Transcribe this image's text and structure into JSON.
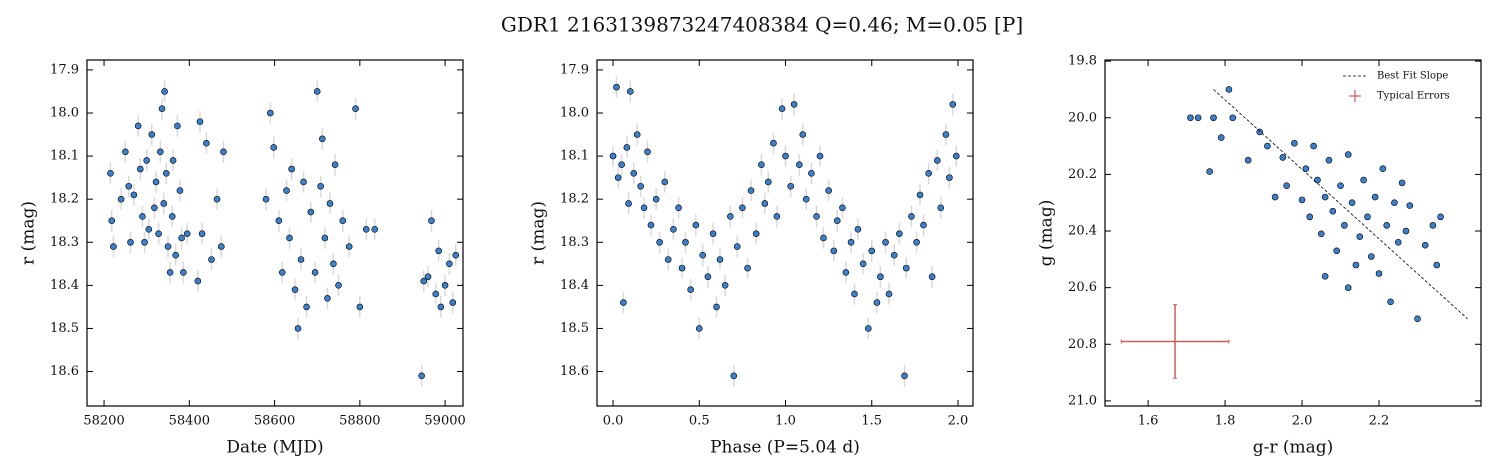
{
  "title": "GDR1 2163139873247408384  Q=0.46; M=0.05 [P]",
  "chart_data": [
    {
      "type": "scatter",
      "xlabel": "Date (MJD)",
      "ylabel": "r (mag)",
      "color": "#3a80cc",
      "error_color": "#d9d9d9",
      "yerr": 0.025,
      "xlim": [
        58160,
        59042
      ],
      "ylim": [
        18.68,
        17.877
      ],
      "xticks": [
        58200,
        58400,
        58600,
        58800,
        59000
      ],
      "yticks": [
        17.9,
        {
          "value": 18.0,
          "label": "18.0"
        },
        18.1,
        18.2,
        18.3,
        18.4,
        18.5,
        18.6
      ],
      "x": [
        58215,
        58218,
        58222,
        58240,
        58250,
        58258,
        58262,
        58270,
        58280,
        58285,
        58290,
        58295,
        58300,
        58305,
        58312,
        58318,
        58322,
        58328,
        58332,
        58336,
        58340,
        58342,
        58346,
        58350,
        58355,
        58360,
        58362,
        58368,
        58372,
        58378,
        58382,
        58386,
        58395,
        58420,
        58425,
        58430,
        58440,
        58452,
        58465,
        58475,
        58480,
        58580,
        58590,
        58598,
        58610,
        58618,
        58628,
        58635,
        58640,
        58648,
        58655,
        58662,
        58668,
        58675,
        58685,
        58695,
        58700,
        58708,
        58712,
        58718,
        58724,
        58730,
        58738,
        58742,
        58750,
        58760,
        58775,
        58790,
        58800,
        58815,
        58835,
        58945,
        58950,
        58960,
        58968,
        58978,
        58985,
        58990,
        59000,
        59010,
        59018,
        59025
      ],
      "y": [
        18.14,
        18.25,
        18.31,
        18.2,
        18.09,
        18.17,
        18.3,
        18.19,
        18.03,
        18.13,
        18.24,
        18.3,
        18.11,
        18.27,
        18.05,
        18.22,
        18.16,
        18.28,
        18.09,
        17.99,
        18.21,
        17.95,
        18.14,
        18.31,
        18.37,
        18.24,
        18.11,
        18.33,
        18.03,
        18.18,
        18.29,
        18.37,
        18.28,
        18.39,
        18.02,
        18.28,
        18.07,
        18.34,
        18.2,
        18.31,
        18.09,
        18.2,
        18.0,
        18.08,
        18.25,
        18.37,
        18.18,
        18.29,
        18.13,
        18.41,
        18.5,
        18.34,
        18.16,
        18.45,
        18.23,
        18.37,
        17.95,
        18.17,
        18.06,
        18.29,
        18.43,
        18.21,
        18.35,
        18.12,
        18.4,
        18.25,
        18.31,
        17.99,
        18.45,
        18.27,
        18.27,
        18.61,
        18.39,
        18.38,
        18.25,
        18.42,
        18.32,
        18.45,
        18.4,
        18.35,
        18.44,
        18.33
      ]
    },
    {
      "type": "scatter",
      "xlabel": "Phase (P=5.04 d)",
      "ylabel": "r (mag)",
      "color": "#3a80cc",
      "error_color": "#d9d9d9",
      "yerr": 0.025,
      "xlim": [
        -0.093,
        2.087
      ],
      "ylim": [
        18.68,
        17.877
      ],
      "xticks": [
        {
          "value": 0.0,
          "label": "0.0"
        },
        0.5,
        {
          "value": 1.0,
          "label": "1.0"
        },
        1.5,
        {
          "value": 2.0,
          "label": "2.0"
        }
      ],
      "yticks": [
        17.9,
        {
          "value": 18.0,
          "label": "18.0"
        },
        18.1,
        18.2,
        18.3,
        18.4,
        18.5,
        18.6
      ],
      "x": [
        0.0,
        0.02,
        0.03,
        0.05,
        0.06,
        0.08,
        0.09,
        0.1,
        0.12,
        0.14,
        0.16,
        0.18,
        0.2,
        0.22,
        0.25,
        0.27,
        0.3,
        0.32,
        0.35,
        0.38,
        0.4,
        0.42,
        0.45,
        0.48,
        0.5,
        0.52,
        0.55,
        0.58,
        0.6,
        0.62,
        0.65,
        0.68,
        0.7,
        0.72,
        0.75,
        0.78,
        0.8,
        0.83,
        0.86,
        0.88,
        0.9,
        0.93,
        0.95,
        0.98,
        1.0,
        1.03,
        1.05,
        1.08,
        1.1,
        1.12,
        1.15,
        1.18,
        1.2,
        1.22,
        1.25,
        1.28,
        1.3,
        1.33,
        1.35,
        1.38,
        1.4,
        1.42,
        1.45,
        1.48,
        1.5,
        1.53,
        1.55,
        1.58,
        1.6,
        1.63,
        1.66,
        1.69,
        1.7,
        1.73,
        1.76,
        1.78,
        1.8,
        1.83,
        1.85,
        1.88,
        1.9,
        1.93,
        1.95,
        1.97,
        1.99
      ],
      "y": [
        18.1,
        17.94,
        18.15,
        18.12,
        18.44,
        18.08,
        18.21,
        17.95,
        18.14,
        18.05,
        18.17,
        18.22,
        18.09,
        18.26,
        18.2,
        18.3,
        18.16,
        18.34,
        18.27,
        18.22,
        18.36,
        18.3,
        18.41,
        18.26,
        18.5,
        18.33,
        18.38,
        18.28,
        18.45,
        18.34,
        18.4,
        18.24,
        18.61,
        18.31,
        18.22,
        18.36,
        18.18,
        18.28,
        18.12,
        18.21,
        18.16,
        18.07,
        18.24,
        17.99,
        18.1,
        18.17,
        17.98,
        18.12,
        18.05,
        18.2,
        18.14,
        18.24,
        18.1,
        18.29,
        18.18,
        18.32,
        18.25,
        18.22,
        18.37,
        18.3,
        18.42,
        18.27,
        18.35,
        18.5,
        18.32,
        18.44,
        18.38,
        18.3,
        18.42,
        18.33,
        18.28,
        18.61,
        18.36,
        18.24,
        18.3,
        18.19,
        18.26,
        18.14,
        18.38,
        18.11,
        18.22,
        18.05,
        18.15,
        17.98,
        18.1
      ]
    },
    {
      "type": "color_magnitude",
      "xlabel": "g-r (mag)",
      "ylabel": "g (mag)",
      "color": "#3a80cc",
      "xlim": [
        1.488,
        2.465
      ],
      "ylim": [
        21.018,
        19.796
      ],
      "xticks": [
        1.6,
        1.8,
        {
          "value": 2.0,
          "label": "2.0"
        },
        2.2
      ],
      "yticks": [
        19.8,
        {
          "value": 20.0,
          "label": "20.0"
        },
        20.2,
        20.4,
        20.6,
        20.8,
        {
          "value": 21.0,
          "label": "21.0"
        }
      ],
      "x": [
        1.71,
        1.73,
        1.76,
        1.77,
        1.79,
        1.81,
        1.82,
        1.86,
        1.89,
        1.91,
        1.93,
        1.95,
        1.96,
        1.98,
        2.0,
        2.01,
        2.02,
        2.03,
        2.04,
        2.05,
        2.06,
        2.07,
        2.08,
        2.09,
        2.1,
        2.11,
        2.12,
        2.13,
        2.14,
        2.15,
        2.16,
        2.17,
        2.18,
        2.19,
        2.2,
        2.21,
        2.22,
        2.23,
        2.24,
        2.25,
        2.26,
        2.27,
        2.28,
        2.3,
        2.32,
        2.34,
        2.35,
        2.36,
        2.12,
        2.06
      ],
      "y": [
        20.0,
        20.0,
        20.19,
        20.0,
        20.07,
        19.9,
        20.0,
        20.15,
        20.05,
        20.1,
        20.28,
        20.14,
        20.24,
        20.09,
        20.29,
        20.18,
        20.35,
        20.1,
        20.22,
        20.41,
        20.28,
        20.15,
        20.33,
        20.47,
        20.24,
        20.38,
        20.13,
        20.3,
        20.52,
        20.42,
        20.22,
        20.35,
        20.49,
        20.28,
        20.55,
        20.18,
        20.38,
        20.65,
        20.3,
        20.44,
        20.23,
        20.4,
        20.31,
        20.71,
        20.45,
        20.38,
        20.52,
        20.35,
        20.6,
        20.56
      ],
      "fit_line": {
        "name": "Best Fit Slope",
        "color": "#000000",
        "x": [
          1.77,
          2.43
        ],
        "y": [
          19.9,
          20.71
        ]
      },
      "typical_error": {
        "name": "Typical Errors",
        "color": "#cd5c5c",
        "x": 1.67,
        "y": 20.79,
        "xerr": 0.14,
        "yerr": 0.13
      },
      "legend": "upper right"
    }
  ]
}
